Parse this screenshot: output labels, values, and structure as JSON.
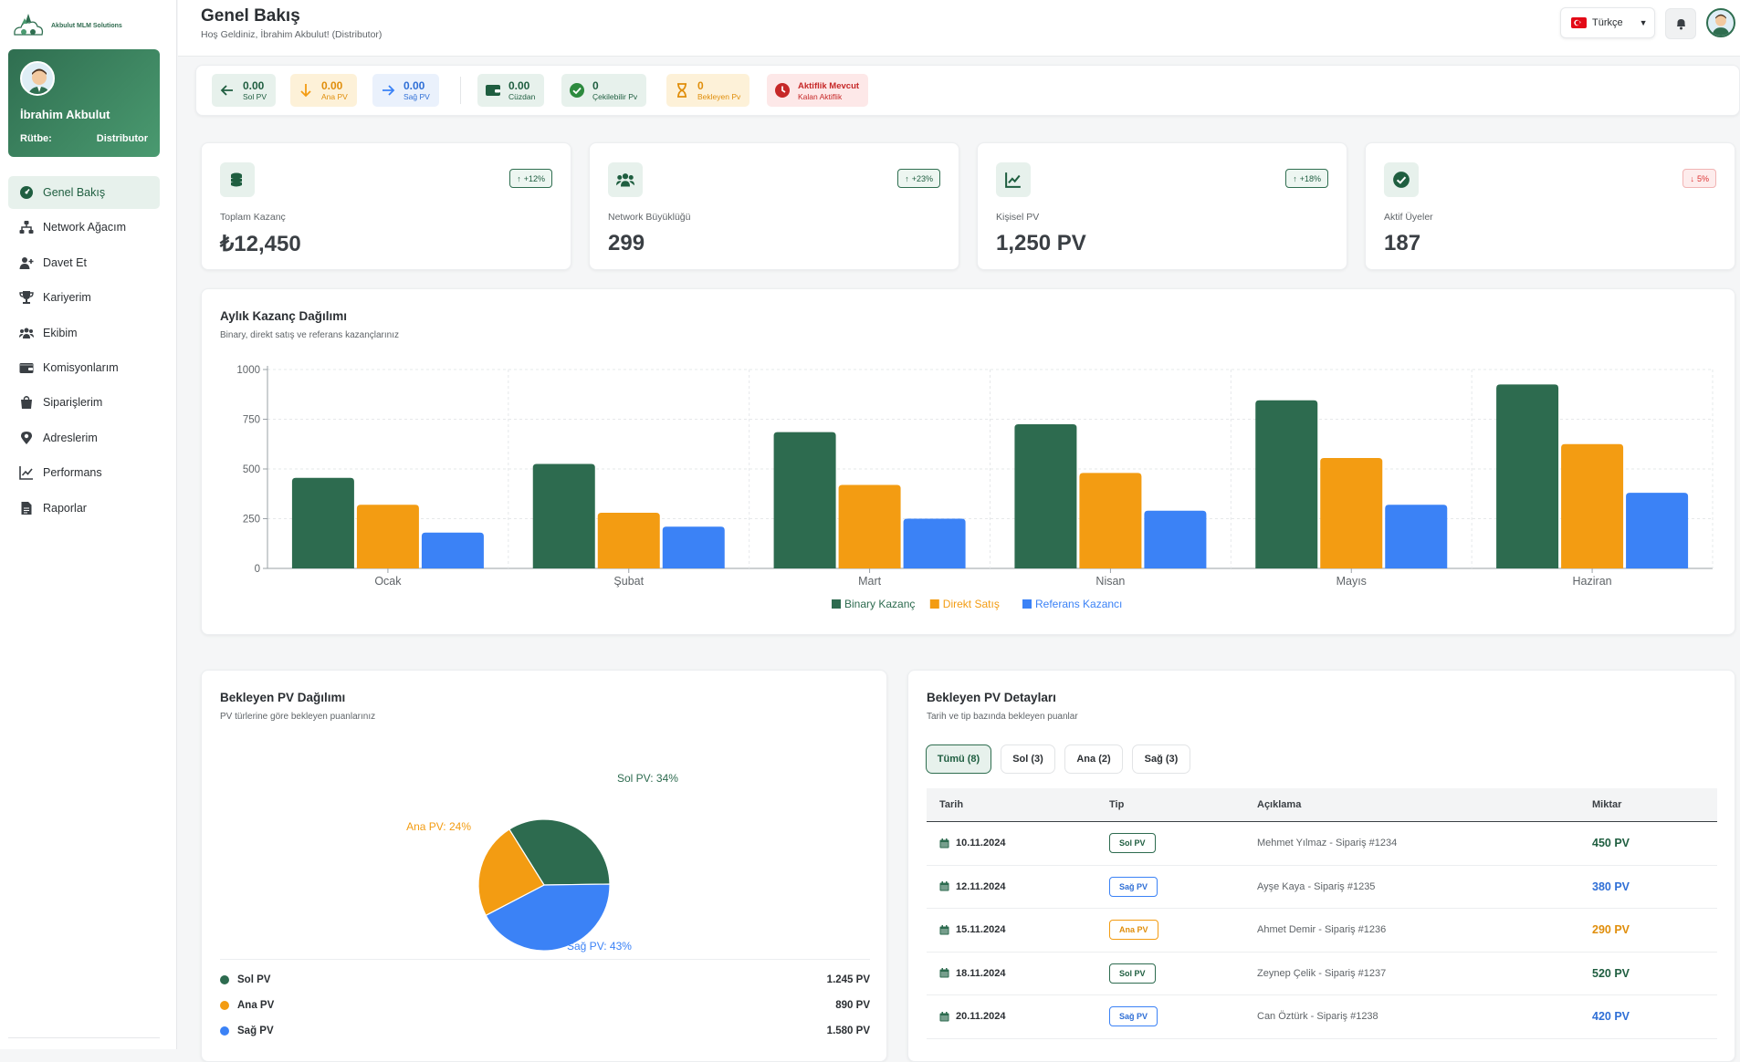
{
  "app": {
    "brand": "Akbulut MLM Solutions"
  },
  "colors": {
    "primary": "#2d6b4f",
    "orange": "#f39c12",
    "blue": "#3b82f6",
    "red": "#d9363e"
  },
  "sidebar": {
    "user_name": "İbrahim Akbulut",
    "rank_label": "Rütbe:",
    "rank_value": "Distributor",
    "items": [
      {
        "label": "Genel Bakış",
        "icon": "dashboard-icon",
        "active": true
      },
      {
        "label": "Network Ağacım",
        "icon": "network-icon"
      },
      {
        "label": "Davet Et",
        "icon": "user-plus-icon"
      },
      {
        "label": "Kariyerim",
        "icon": "trophy-icon"
      },
      {
        "label": "Ekibim",
        "icon": "users-icon"
      },
      {
        "label": "Komisyonlarım",
        "icon": "wallet-icon"
      },
      {
        "label": "Siparişlerim",
        "icon": "bag-icon"
      },
      {
        "label": "Adreslerim",
        "icon": "location-icon"
      },
      {
        "label": "Performans",
        "icon": "line-chart-icon"
      },
      {
        "label": "Raporlar",
        "icon": "file-icon"
      }
    ]
  },
  "header": {
    "title": "Genel Bakış",
    "subtitle": "Hoş Geldiniz, İbrahim Akbulut! (Distributor)",
    "language": "Türkçe"
  },
  "statsbar": {
    "sol_pv": {
      "value": "0.00",
      "label": "Sol PV"
    },
    "ana_pv": {
      "value": "0.00",
      "label": "Ana PV"
    },
    "sag_pv": {
      "value": "0.00",
      "label": "Sağ PV"
    },
    "cuzdan": {
      "value": "0.00",
      "label": "Cüzdan"
    },
    "cekilebilir": {
      "value": "0",
      "label": "Çekilebilir Pv"
    },
    "bekleyen": {
      "value": "0",
      "label": "Bekleyen Pv"
    },
    "aktiflik": {
      "value": "Aktiflik Mevcut",
      "label": "Kalan Aktiflik"
    }
  },
  "kpis": [
    {
      "label": "Toplam Kazanç",
      "value": "₺12,450",
      "badge": "+12%",
      "trend": "up",
      "icon": "coins-icon"
    },
    {
      "label": "Network Büyüklüğü",
      "value": "299",
      "badge": "+23%",
      "trend": "up",
      "icon": "users-icon"
    },
    {
      "label": "Kişisel PV",
      "value": "1,250 PV",
      "badge": "+18%",
      "trend": "up",
      "icon": "line-chart-icon"
    },
    {
      "label": "Aktif Üyeler",
      "value": "187",
      "badge": "5%",
      "trend": "down",
      "icon": "check-circle-icon"
    }
  ],
  "monthly": {
    "title": "Aylık Kazanç Dağılımı",
    "subtitle": "Binary, direkt satış ve referans kazançlarınız"
  },
  "chart_data": [
    {
      "type": "bar",
      "categories": [
        "Ocak",
        "Şubat",
        "Mart",
        "Nisan",
        "Mayıs",
        "Haziran"
      ],
      "series": [
        {
          "name": "Binary Kazanç",
          "color": "#2d6b4f",
          "values": [
            455,
            525,
            685,
            725,
            845,
            925
          ]
        },
        {
          "name": "Direkt Satış",
          "color": "#f39c12",
          "values": [
            320,
            280,
            420,
            480,
            555,
            625
          ]
        },
        {
          "name": "Referans Kazancı",
          "color": "#3b82f6",
          "values": [
            180,
            210,
            250,
            290,
            320,
            380
          ]
        }
      ],
      "ylim": [
        0,
        1000
      ],
      "yticks": [
        0,
        250,
        500,
        750,
        1000
      ],
      "grid": true,
      "legend": "bottom"
    },
    {
      "type": "pie",
      "categories": [
        "Sol PV",
        "Ana PV",
        "Sağ PV"
      ],
      "values": [
        34,
        24,
        43
      ],
      "labels": [
        "Sol PV: 34%",
        "Ana PV: 24%",
        "Sağ PV: 43%"
      ],
      "colors": [
        "#2d6b4f",
        "#f39c12",
        "#3b82f6"
      ]
    }
  ],
  "pending_dist": {
    "title": "Bekleyen PV Dağılımı",
    "subtitle": "PV türlerine göre bekleyen puanlarınız",
    "items": [
      {
        "label": "Sol PV",
        "value": "1.245 PV",
        "color": "#2d6b4f"
      },
      {
        "label": "Ana PV",
        "value": "890 PV",
        "color": "#f39c12"
      },
      {
        "label": "Sağ PV",
        "value": "1.580 PV",
        "color": "#3b82f6"
      }
    ]
  },
  "pending_details": {
    "title": "Bekleyen PV Detayları",
    "subtitle": "Tarih ve tip bazında bekleyen puanlar",
    "filters": [
      "Tümü (8)",
      "Sol (3)",
      "Ana (2)",
      "Sağ (3)"
    ],
    "columns": [
      "Tarih",
      "Tip",
      "Açıklama",
      "Miktar"
    ],
    "rows": [
      {
        "date": "10.11.2024",
        "type": "Sol PV",
        "desc": "Mehmet Yılmaz - Sipariş #1234",
        "amount": "450 PV",
        "kind": "sol"
      },
      {
        "date": "12.11.2024",
        "type": "Sağ PV",
        "desc": "Ayşe Kaya - Sipariş #1235",
        "amount": "380 PV",
        "kind": "sag"
      },
      {
        "date": "15.11.2024",
        "type": "Ana PV",
        "desc": "Ahmet Demir - Sipariş #1236",
        "amount": "290 PV",
        "kind": "ana"
      },
      {
        "date": "18.11.2024",
        "type": "Sol PV",
        "desc": "Zeynep Çelik - Sipariş #1237",
        "amount": "520 PV",
        "kind": "sol"
      },
      {
        "date": "20.11.2024",
        "type": "Sağ PV",
        "desc": "Can Öztürk - Sipariş #1238",
        "amount": "420 PV",
        "kind": "sag"
      }
    ]
  }
}
